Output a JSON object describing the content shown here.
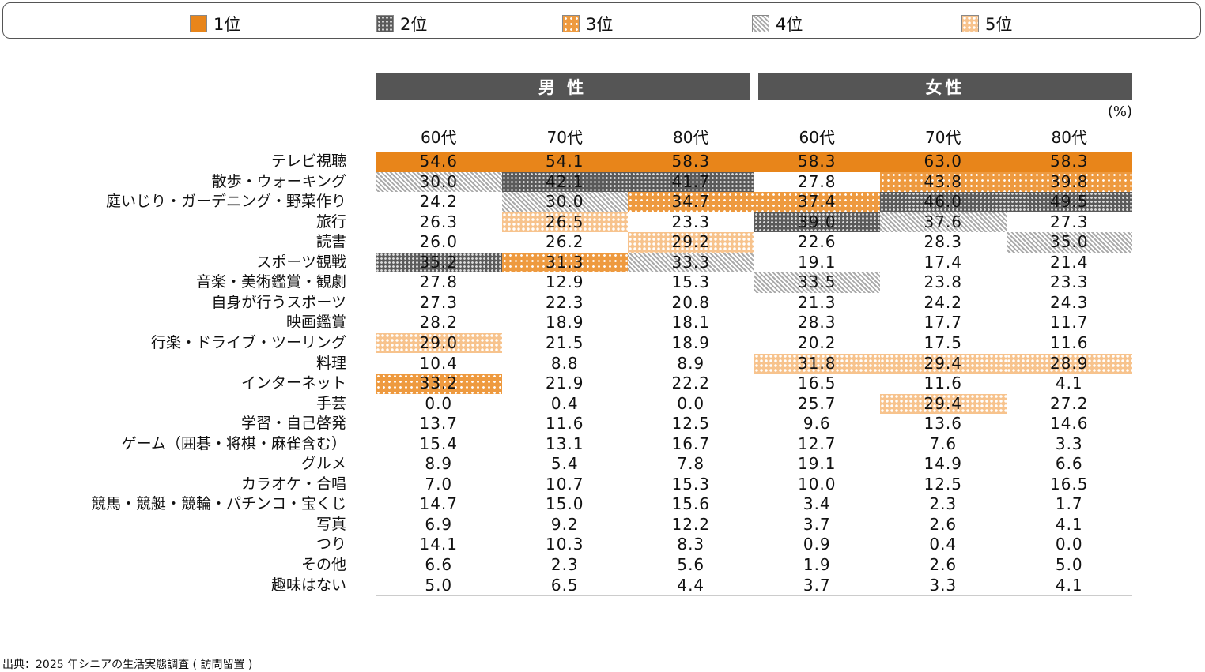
{
  "legend": [
    {
      "rank": 1,
      "label": "1位"
    },
    {
      "rank": 2,
      "label": "2位"
    },
    {
      "rank": 3,
      "label": "3位"
    },
    {
      "rank": 4,
      "label": "4位"
    },
    {
      "rank": 5,
      "label": "5位"
    }
  ],
  "groups": {
    "male": "男 性",
    "female": "女性"
  },
  "unit": "(%)",
  "source": "出典：2025 年シニアの生活実態調査 ( 訪問留置 )",
  "chart_data": {
    "type": "table",
    "columns": [
      "60代",
      "70代",
      "80代",
      "60代",
      "70代",
      "80代"
    ],
    "column_groups": [
      "男 性",
      "男 性",
      "男 性",
      "女性",
      "女性",
      "女性"
    ],
    "rows": [
      {
        "label": "テレビ視聴",
        "values": [
          "54.6",
          "54.1",
          "58.3",
          "58.3",
          "63.0",
          "58.3"
        ],
        "ranks": [
          1,
          1,
          1,
          1,
          1,
          1
        ]
      },
      {
        "label": "散歩・ウォーキング",
        "values": [
          "30.0",
          "42.1",
          "41.7",
          "27.8",
          "43.8",
          "39.8"
        ],
        "ranks": [
          4,
          2,
          2,
          0,
          3,
          3
        ]
      },
      {
        "label": "庭いじり・ガーデニング・野菜作り",
        "values": [
          "24.2",
          "30.0",
          "34.7",
          "37.4",
          "46.0",
          "49.5"
        ],
        "ranks": [
          0,
          4,
          3,
          3,
          2,
          2
        ]
      },
      {
        "label": "旅行",
        "values": [
          "26.3",
          "26.5",
          "23.3",
          "39.0",
          "37.6",
          "27.3"
        ],
        "ranks": [
          0,
          5,
          0,
          2,
          4,
          0
        ]
      },
      {
        "label": "読書",
        "values": [
          "26.0",
          "26.2",
          "29.2",
          "22.6",
          "28.3",
          "35.0"
        ],
        "ranks": [
          0,
          0,
          5,
          0,
          0,
          4
        ]
      },
      {
        "label": "スポーツ観戦",
        "values": [
          "35.2",
          "31.3",
          "33.3",
          "19.1",
          "17.4",
          "21.4"
        ],
        "ranks": [
          2,
          3,
          4,
          0,
          0,
          0
        ]
      },
      {
        "label": "音楽・美術鑑賞・観劇",
        "values": [
          "27.8",
          "12.9",
          "15.3",
          "33.5",
          "23.8",
          "23.3"
        ],
        "ranks": [
          0,
          0,
          0,
          4,
          0,
          0
        ]
      },
      {
        "label": "自身が行うスポーツ",
        "values": [
          "27.3",
          "22.3",
          "20.8",
          "21.3",
          "24.2",
          "24.3"
        ],
        "ranks": [
          0,
          0,
          0,
          0,
          0,
          0
        ]
      },
      {
        "label": "映画鑑賞",
        "values": [
          "28.2",
          "18.9",
          "18.1",
          "28.3",
          "17.7",
          "11.7"
        ],
        "ranks": [
          0,
          0,
          0,
          0,
          0,
          0
        ]
      },
      {
        "label": "行楽・ドライブ・ツーリング",
        "values": [
          "29.0",
          "21.5",
          "18.9",
          "20.2",
          "17.5",
          "11.6"
        ],
        "ranks": [
          5,
          0,
          0,
          0,
          0,
          0
        ]
      },
      {
        "label": "料理",
        "values": [
          "10.4",
          "8.8",
          "8.9",
          "31.8",
          "29.4",
          "28.9"
        ],
        "ranks": [
          0,
          0,
          0,
          5,
          5,
          5
        ]
      },
      {
        "label": "インターネット",
        "values": [
          "33.2",
          "21.9",
          "22.2",
          "16.5",
          "11.6",
          "4.1"
        ],
        "ranks": [
          3,
          0,
          0,
          0,
          0,
          0
        ]
      },
      {
        "label": "手芸",
        "values": [
          "0.0",
          "0.4",
          "0.0",
          "25.7",
          "29.4",
          "27.2"
        ],
        "ranks": [
          0,
          0,
          0,
          0,
          5,
          0
        ]
      },
      {
        "label": "学習・自己啓発",
        "values": [
          "13.7",
          "11.6",
          "12.5",
          "9.6",
          "13.6",
          "14.6"
        ],
        "ranks": [
          0,
          0,
          0,
          0,
          0,
          0
        ]
      },
      {
        "label": "ゲーム（囲碁・将棋・麻雀含む）",
        "values": [
          "15.4",
          "13.1",
          "16.7",
          "12.7",
          "7.6",
          "3.3"
        ],
        "ranks": [
          0,
          0,
          0,
          0,
          0,
          0
        ]
      },
      {
        "label": "グルメ",
        "values": [
          "8.9",
          "5.4",
          "7.8",
          "19.1",
          "14.9",
          "6.6"
        ],
        "ranks": [
          0,
          0,
          0,
          0,
          0,
          0
        ]
      },
      {
        "label": "カラオケ・合唱",
        "values": [
          "7.0",
          "10.7",
          "15.3",
          "10.0",
          "12.5",
          "16.5"
        ],
        "ranks": [
          0,
          0,
          0,
          0,
          0,
          0
        ]
      },
      {
        "label": "競馬・競艇・競輪・パチンコ・宝くじ",
        "values": [
          "14.7",
          "15.0",
          "15.6",
          "3.4",
          "2.3",
          "1.7"
        ],
        "ranks": [
          0,
          0,
          0,
          0,
          0,
          0
        ]
      },
      {
        "label": "写真",
        "values": [
          "6.9",
          "9.2",
          "12.2",
          "3.7",
          "2.6",
          "4.1"
        ],
        "ranks": [
          0,
          0,
          0,
          0,
          0,
          0
        ]
      },
      {
        "label": "つり",
        "values": [
          "14.1",
          "10.3",
          "8.3",
          "0.9",
          "0.4",
          "0.0"
        ],
        "ranks": [
          0,
          0,
          0,
          0,
          0,
          0
        ]
      },
      {
        "label": "その他",
        "values": [
          "6.6",
          "2.3",
          "5.6",
          "1.9",
          "2.6",
          "5.0"
        ],
        "ranks": [
          0,
          0,
          0,
          0,
          0,
          0
        ]
      },
      {
        "label": "趣味はない",
        "values": [
          "5.0",
          "6.5",
          "4.4",
          "3.7",
          "3.3",
          "4.1"
        ],
        "ranks": [
          0,
          0,
          0,
          0,
          0,
          0
        ]
      }
    ]
  },
  "colors": {
    "rank1": "#E8851A",
    "rank2": "#5a5a5a",
    "rank3": "#EE9A3F",
    "rank4": "#aaaaaa",
    "rank5": "#F7C38D",
    "header": "#555555"
  }
}
